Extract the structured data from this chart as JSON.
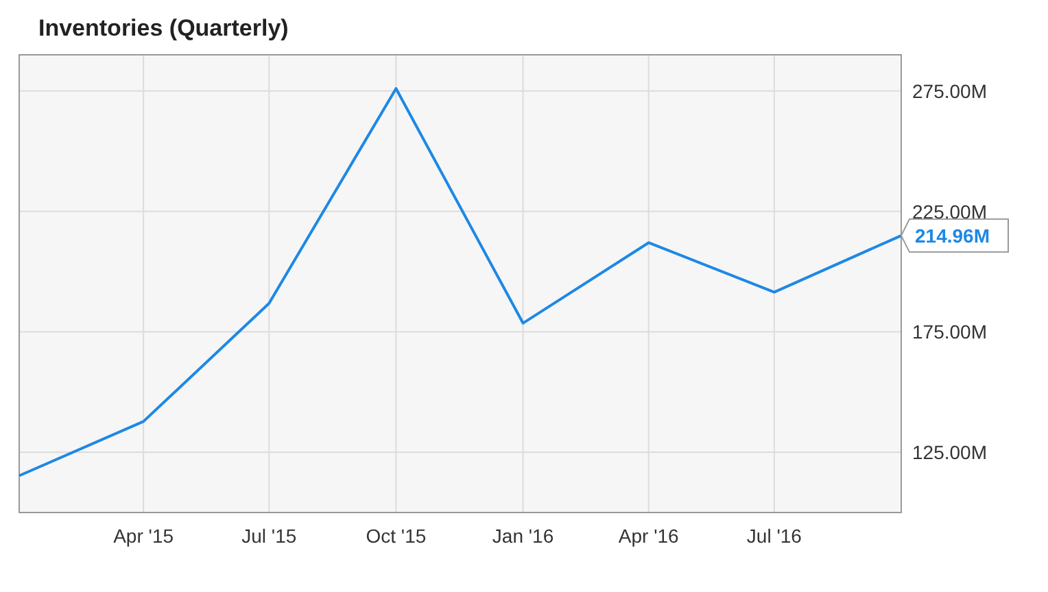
{
  "chart_data": {
    "type": "line",
    "title": "Inventories (Quarterly)",
    "x": [
      "2015-01",
      "2015-04",
      "2015-07",
      "2015-10",
      "2016-01",
      "2016-04",
      "2016-07",
      "2016-10"
    ],
    "series": [
      {
        "color": "#1e88e5",
        "values": [
          115.3,
          137.8,
          186.8,
          276,
          178.6,
          212,
          191.5,
          214.96
        ]
      }
    ],
    "xlim": [
      "2015-01-01",
      "2016-10-01"
    ],
    "xticks": [
      {
        "value": "2015-04",
        "label": "Apr '15"
      },
      {
        "value": "2015-07",
        "label": "Jul '15"
      },
      {
        "value": "2015-10",
        "label": "Oct '15"
      },
      {
        "value": "2016-01",
        "label": "Jan '16"
      },
      {
        "value": "2016-04",
        "label": "Apr '16"
      },
      {
        "value": "2016-07",
        "label": "Jul '16"
      }
    ],
    "ylim": [
      100,
      290
    ],
    "yticks": [
      {
        "value": 125,
        "label": "125.00M"
      },
      {
        "value": 175,
        "label": "175.00M"
      },
      {
        "value": 225,
        "label": "225.00M"
      },
      {
        "value": 275,
        "label": "275.00M"
      }
    ],
    "grid": true,
    "marker": "none",
    "line_style": "solid",
    "annotations": [
      {
        "text": "214.96M",
        "x": "2016-10",
        "y": 214.96
      }
    ]
  }
}
